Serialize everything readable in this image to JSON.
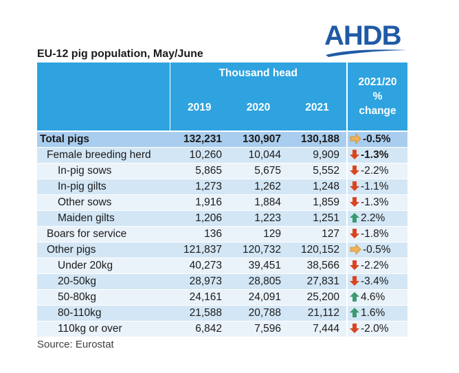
{
  "logo": {
    "text": "AHDB"
  },
  "title": "EU-12 pig population, May/June",
  "table": {
    "group_header": "Thousand head",
    "year_headers": [
      "2019",
      "2020",
      "2021"
    ],
    "change_header": [
      "2021/20",
      "%",
      "change"
    ],
    "rows": [
      {
        "label": "Total pigs",
        "v2019": "132,231",
        "v2020": "130,907",
        "v2021": "130,188",
        "change": "-0.5%",
        "trend": "flat",
        "icon": "orange-right-arrow-icon",
        "level": 0,
        "style": "total"
      },
      {
        "label": "Female breeding herd",
        "v2019": "10,260",
        "v2020": "10,044",
        "v2021": "9,909",
        "change": "-1.3%",
        "trend": "down",
        "icon": "red-down-arrow-icon",
        "level": 1,
        "style": "bold-change"
      },
      {
        "label": "In-pig sows",
        "v2019": "5,865",
        "v2020": "5,675",
        "v2021": "5,552",
        "change": "-2.2%",
        "trend": "down",
        "icon": "red-down-arrow-icon",
        "level": 2,
        "style": "normal"
      },
      {
        "label": "In-pig gilts",
        "v2019": "1,273",
        "v2020": "1,262",
        "v2021": "1,248",
        "change": "-1.1%",
        "trend": "down",
        "icon": "red-down-arrow-icon",
        "level": 2,
        "style": "normal"
      },
      {
        "label": "Other sows",
        "v2019": "1,916",
        "v2020": "1,884",
        "v2021": "1,859",
        "change": "-1.3%",
        "trend": "down",
        "icon": "red-down-arrow-icon",
        "level": 2,
        "style": "normal"
      },
      {
        "label": "Maiden gilts",
        "v2019": "1,206",
        "v2020": "1,223",
        "v2021": "1,251",
        "change": "2.2%",
        "trend": "up",
        "icon": "green-up-arrow-icon",
        "level": 2,
        "style": "normal"
      },
      {
        "label": "Boars for service",
        "v2019": "136",
        "v2020": "129",
        "v2021": "127",
        "change": "-1.8%",
        "trend": "down",
        "icon": "red-down-arrow-icon",
        "level": 1,
        "style": "normal"
      },
      {
        "label": "Other pigs",
        "v2019": "121,837",
        "v2020": "120,732",
        "v2021": "120,152",
        "change": "-0.5%",
        "trend": "flat",
        "icon": "orange-right-arrow-icon",
        "level": 1,
        "style": "normal"
      },
      {
        "label": "Under 20kg",
        "v2019": "40,273",
        "v2020": "39,451",
        "v2021": "38,566",
        "change": "-2.2%",
        "trend": "down",
        "icon": "red-down-arrow-icon",
        "level": 2,
        "style": "normal"
      },
      {
        "label": "20-50kg",
        "v2019": "28,973",
        "v2020": "28,805",
        "v2021": "27,831",
        "change": "-3.4%",
        "trend": "down",
        "icon": "red-down-arrow-icon",
        "level": 2,
        "style": "normal"
      },
      {
        "label": "50-80kg",
        "v2019": "24,161",
        "v2020": "24,091",
        "v2021": "25,200",
        "change": "4.6%",
        "trend": "up",
        "icon": "green-up-arrow-icon",
        "level": 2,
        "style": "normal"
      },
      {
        "label": "80-110kg",
        "v2019": "21,588",
        "v2020": "20,788",
        "v2021": "21,112",
        "change": "1.6%",
        "trend": "up",
        "icon": "green-up-arrow-icon",
        "level": 2,
        "style": "normal"
      },
      {
        "label": "110kg or over",
        "v2019": "6,842",
        "v2020": "7,596",
        "v2021": "7,444",
        "change": "-2.0%",
        "trend": "down",
        "icon": "red-down-arrow-icon",
        "level": 2,
        "style": "normal"
      }
    ]
  },
  "source": "Source: Eurostat",
  "colors": {
    "header_bg": "#2ea3e0",
    "total_bg": "#a9cdee",
    "row_odd_bg": "#d3e6f5",
    "row_even_bg": "#eaf2fa",
    "down": "#d9451f",
    "up": "#3d9a72",
    "flat": "#f0b257",
    "logo": "#1f5aa6"
  }
}
